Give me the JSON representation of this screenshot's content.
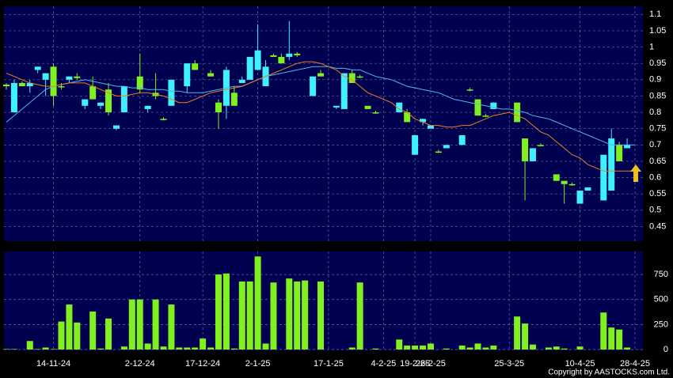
{
  "chart_data": {
    "type": "candlestick",
    "categories": [
      null,
      null,
      null,
      null,
      null,
      null,
      "14-11-24",
      null,
      null,
      null,
      null,
      null,
      null,
      null,
      null,
      null,
      null,
      "2-12-24",
      null,
      null,
      null,
      null,
      null,
      null,
      null,
      "17-12-24",
      null,
      null,
      null,
      null,
      null,
      null,
      "2-1-25",
      null,
      null,
      null,
      null,
      null,
      null,
      null,
      null,
      "17-1-25",
      null,
      null,
      null,
      null,
      null,
      null,
      "4-2-25",
      null,
      null,
      null,
      "19-2-25",
      null,
      "26-2-25",
      null,
      null,
      null,
      null,
      null,
      null,
      null,
      null,
      null,
      "25-3-25",
      null,
      null,
      null,
      null,
      null,
      null,
      null,
      null,
      "10-4-25",
      null,
      null,
      null,
      null,
      null,
      null,
      "28-4-25"
    ],
    "ohlc": [
      [
        0.885,
        0.89,
        0.87,
        0.88
      ],
      [
        0.8,
        0.9,
        0.8,
        0.89
      ],
      [
        0.89,
        0.895,
        0.88,
        0.88
      ],
      [
        0.88,
        0.9,
        0.86,
        0.89
      ],
      [
        0.93,
        0.94,
        0.92,
        0.94
      ],
      [
        0.9,
        0.92,
        0.85,
        0.92
      ],
      [
        0.94,
        0.95,
        0.82,
        0.85
      ],
      [
        0.88,
        0.89,
        0.87,
        0.88
      ],
      [
        0.9,
        0.91,
        0.89,
        0.91
      ],
      [
        0.91,
        0.92,
        0.9,
        0.905
      ],
      [
        0.82,
        0.84,
        0.81,
        0.84
      ],
      [
        0.88,
        0.91,
        0.84,
        0.84
      ],
      [
        0.82,
        0.83,
        0.81,
        0.83
      ],
      [
        0.87,
        0.89,
        0.79,
        0.8
      ],
      [
        0.75,
        0.76,
        0.745,
        0.76
      ],
      [
        0.8,
        0.88,
        0.8,
        0.88
      ],
      null,
      [
        0.91,
        0.98,
        0.86,
        0.87
      ],
      [
        0.81,
        0.82,
        0.8,
        0.82
      ],
      [
        0.86,
        0.92,
        0.84,
        0.85
      ],
      [
        0.78,
        0.785,
        0.775,
        0.78
      ],
      [
        0.82,
        0.9,
        0.82,
        0.9
      ],
      null,
      [
        0.88,
        0.95,
        0.86,
        0.95
      ],
      [
        0.95,
        0.96,
        0.93,
        0.93
      ],
      null,
      [
        0.92,
        0.93,
        0.91,
        0.91
      ],
      [
        0.83,
        0.84,
        0.75,
        0.8
      ],
      [
        0.82,
        0.94,
        0.78,
        0.93
      ],
      [
        0.86,
        0.88,
        0.82,
        0.82
      ],
      [
        0.89,
        0.91,
        0.89,
        0.9
      ],
      [
        0.9,
        0.97,
        0.9,
        0.97
      ],
      [
        0.93,
        1.07,
        0.93,
        0.99
      ],
      [
        0.88,
        0.96,
        0.88,
        0.94
      ],
      [
        0.975,
        0.98,
        0.97,
        0.97
      ],
      [
        0.97,
        0.98,
        0.95,
        0.95
      ],
      [
        0.97,
        1.08,
        0.96,
        0.98
      ],
      [
        0.98,
        0.985,
        0.97,
        0.975
      ],
      null,
      [
        0.85,
        0.91,
        0.85,
        0.91
      ],
      [
        0.92,
        0.93,
        0.91,
        0.91
      ],
      null,
      [
        0.815,
        0.82,
        0.81,
        0.82
      ],
      [
        0.81,
        0.92,
        0.81,
        0.92
      ],
      [
        0.92,
        0.93,
        0.89,
        0.89
      ],
      [
        0.91,
        0.915,
        0.905,
        0.91
      ],
      [
        0.82,
        0.82,
        0.81,
        0.81
      ],
      [
        0.8,
        0.805,
        0.795,
        0.8
      ],
      null,
      null,
      [
        0.8,
        0.83,
        0.8,
        0.83
      ],
      [
        0.8,
        0.81,
        0.77,
        0.77
      ],
      [
        0.67,
        0.73,
        0.67,
        0.73
      ],
      [
        0.77,
        0.78,
        0.76,
        0.78
      ],
      [
        0.75,
        0.76,
        0.75,
        0.76
      ],
      [
        0.68,
        0.685,
        0.675,
        0.68
      ],
      [
        0.69,
        0.7,
        0.69,
        0.7
      ],
      null,
      [
        0.7,
        0.73,
        0.7,
        0.73
      ],
      [
        0.87,
        0.875,
        0.865,
        0.87
      ],
      [
        0.84,
        0.84,
        0.79,
        0.79
      ],
      [
        0.79,
        0.795,
        0.785,
        0.79
      ],
      [
        0.81,
        0.83,
        0.81,
        0.83
      ],
      null,
      null,
      [
        0.83,
        0.83,
        0.77,
        0.77
      ],
      [
        0.72,
        0.72,
        0.53,
        0.65
      ],
      [
        0.65,
        0.69,
        0.65,
        0.69
      ],
      [
        0.7,
        0.705,
        0.695,
        0.7
      ],
      null,
      [
        0.61,
        0.61,
        0.59,
        0.59
      ],
      [
        0.59,
        0.59,
        0.52,
        0.58
      ],
      [
        0.58,
        0.585,
        0.575,
        0.58
      ],
      [
        0.52,
        0.56,
        0.52,
        0.56
      ],
      [
        0.56,
        0.57,
        0.56,
        0.57
      ],
      null,
      [
        0.53,
        0.67,
        0.53,
        0.67
      ],
      [
        0.56,
        0.75,
        0.56,
        0.72
      ],
      [
        0.7,
        0.71,
        0.65,
        0.65
      ],
      [
        0.69,
        0.72,
        0.69,
        0.7
      ],
      null
    ],
    "up_color": "#3ff0ff",
    "down_color": "#80f020",
    "lines": [
      {
        "color": "#4fb8f0",
        "values": [
          0.77,
          0.79,
          0.81,
          0.83,
          0.85,
          0.87,
          0.88,
          0.885,
          0.89,
          0.895,
          0.9,
          0.895,
          0.89,
          0.885,
          0.88,
          0.88,
          0.875,
          0.875,
          0.87,
          0.87,
          0.87,
          0.865,
          0.865,
          0.86,
          0.86,
          0.86,
          0.865,
          0.87,
          0.875,
          0.88,
          0.88,
          0.89,
          0.9,
          0.91,
          0.915,
          0.92,
          0.925,
          0.93,
          0.935,
          0.94,
          0.94,
          0.94,
          0.935,
          0.935,
          0.93,
          0.93,
          0.92,
          0.91,
          0.905,
          0.9,
          0.89,
          0.88,
          0.875,
          0.87,
          0.865,
          0.86,
          0.85,
          0.84,
          0.835,
          0.83,
          0.825,
          0.82,
          0.815,
          0.81,
          0.81,
          0.805,
          0.8,
          0.79,
          0.785,
          0.78,
          0.77,
          0.76,
          0.75,
          0.74,
          0.73,
          0.72,
          0.71,
          0.7,
          0.7,
          0.7,
          0.7
        ]
      },
      {
        "color": "#f08020",
        "values": [
          0.92,
          0.91,
          0.9,
          0.89,
          0.885,
          0.88,
          0.88,
          0.885,
          0.89,
          0.89,
          0.89,
          0.88,
          0.87,
          0.86,
          0.85,
          0.85,
          0.855,
          0.86,
          0.86,
          0.855,
          0.85,
          0.84,
          0.83,
          0.83,
          0.84,
          0.85,
          0.86,
          0.865,
          0.87,
          0.875,
          0.88,
          0.89,
          0.9,
          0.91,
          0.92,
          0.93,
          0.94,
          0.95,
          0.955,
          0.955,
          0.95,
          0.94,
          0.93,
          0.91,
          0.9,
          0.88,
          0.86,
          0.85,
          0.84,
          0.83,
          0.81,
          0.8,
          0.78,
          0.77,
          0.76,
          0.76,
          0.755,
          0.755,
          0.76,
          0.76,
          0.77,
          0.78,
          0.79,
          0.795,
          0.8,
          0.79,
          0.78,
          0.76,
          0.74,
          0.73,
          0.71,
          0.69,
          0.67,
          0.66,
          0.64,
          0.63,
          0.62,
          0.62,
          0.62,
          0.62,
          0.62
        ]
      }
    ],
    "ylim": [
      0.405,
      1.125
    ],
    "yticks": [
      0.45,
      0.5,
      0.55,
      0.6,
      0.65,
      0.7,
      0.75,
      0.8,
      0.85,
      0.9,
      0.95,
      1,
      1.05,
      1.1
    ],
    "grid": true,
    "volume": {
      "color": "#80f020",
      "values": [
        5,
        5,
        0,
        85,
        5,
        20,
        5,
        280,
        450,
        270,
        0,
        380,
        10,
        310,
        0,
        30,
        500,
        500,
        60,
        500,
        30,
        450,
        20,
        20,
        20,
        110,
        20,
        750,
        760,
        10,
        680,
        680,
        930,
        60,
        670,
        0,
        710,
        680,
        690,
        0,
        680,
        0,
        0,
        0,
        20,
        670,
        0,
        10,
        null,
        null,
        100,
        40,
        40,
        40,
        60,
        0,
        10,
        null,
        40,
        20,
        60,
        20,
        40,
        null,
        null,
        330,
        260,
        50,
        0,
        20,
        30,
        10,
        0,
        30,
        0,
        null,
        370,
        220,
        200,
        20,
        null
      ],
      "ylim": [
        0,
        980
      ],
      "yticks": [
        0,
        250,
        500,
        750
      ]
    }
  },
  "copyright": "Copyright by AASTOCKS.com Ltd."
}
